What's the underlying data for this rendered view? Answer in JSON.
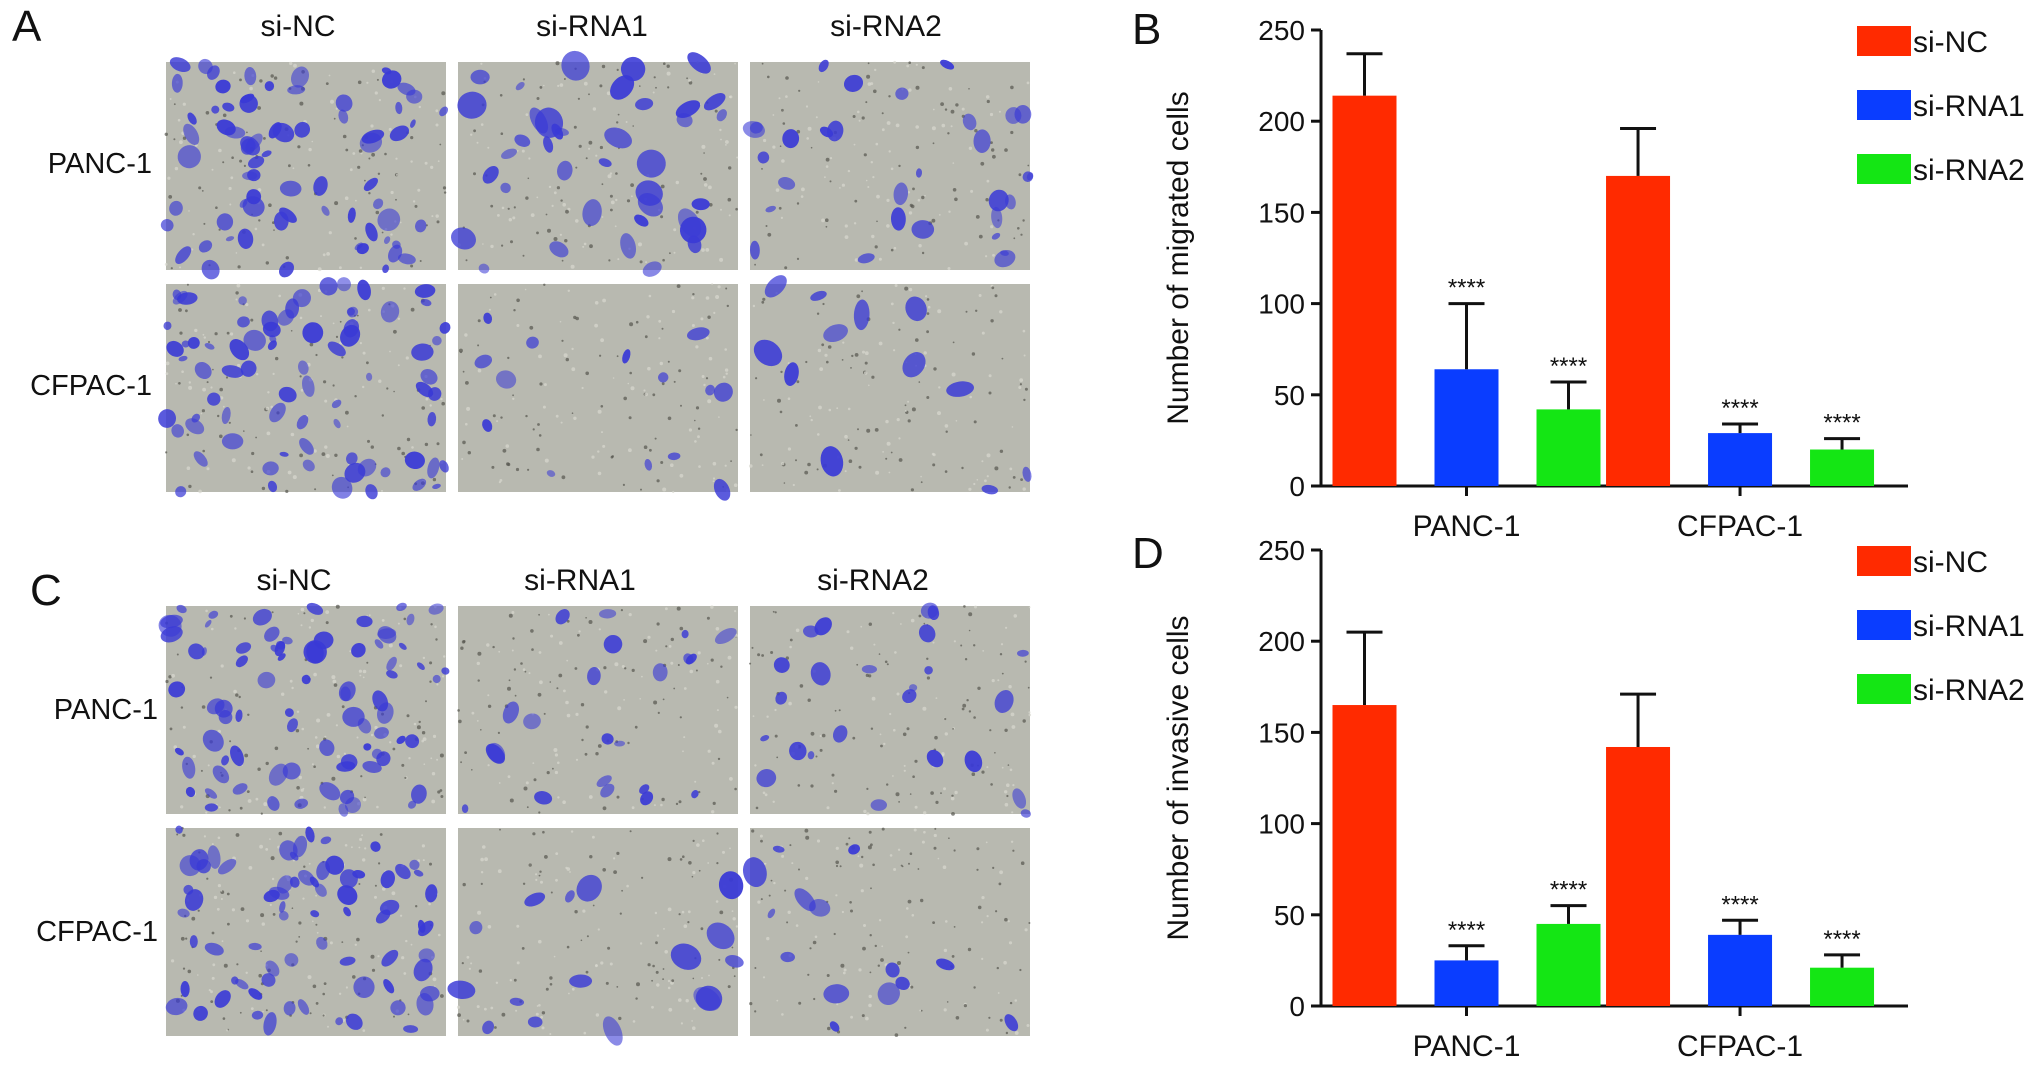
{
  "panels": {
    "A": {
      "letter": "A",
      "columns": [
        "si-NC",
        "si-RNA1",
        "si-RNA2"
      ],
      "rows": [
        "PANC-1",
        "CFPAC-1"
      ]
    },
    "C": {
      "letter": "C",
      "columns": [
        "si-NC",
        "si-RNA1",
        "si-RNA2"
      ],
      "rows": [
        "PANC-1",
        "CFPAC-1"
      ]
    }
  },
  "colors": {
    "si-NC": "#ff2a00",
    "si-RNA1": "#0a3dff",
    "si-RNA2": "#14e614",
    "stain": "#3a3ad6",
    "background_field": "#b8b9b0"
  },
  "chart_data": [
    {
      "panel": "B",
      "type": "bar",
      "categories": [
        "PANC-1",
        "CFPAC-1"
      ],
      "series": [
        {
          "name": "si-NC",
          "values": [
            214,
            170
          ],
          "errors": [
            23,
            26
          ],
          "sig": [
            "",
            ""
          ]
        },
        {
          "name": "si-RNA1",
          "values": [
            64,
            29
          ],
          "errors": [
            36,
            5
          ],
          "sig": [
            "****",
            "****"
          ]
        },
        {
          "name": "si-RNA2",
          "values": [
            42,
            20
          ],
          "errors": [
            15,
            6
          ],
          "sig": [
            "****",
            "****"
          ]
        }
      ],
      "ylabel": "Number of migrated cells",
      "ylim": [
        0,
        250
      ],
      "yticks": [
        0,
        50,
        100,
        150,
        200,
        250
      ],
      "legend_position": "top-right"
    },
    {
      "panel": "D",
      "type": "bar",
      "categories": [
        "PANC-1",
        "CFPAC-1"
      ],
      "series": [
        {
          "name": "si-NC",
          "values": [
            165,
            142
          ],
          "errors": [
            40,
            29
          ],
          "sig": [
            "",
            ""
          ]
        },
        {
          "name": "si-RNA1",
          "values": [
            25,
            39
          ],
          "errors": [
            8,
            8
          ],
          "sig": [
            "****",
            "****"
          ]
        },
        {
          "name": "si-RNA2",
          "values": [
            45,
            21
          ],
          "errors": [
            10,
            7
          ],
          "sig": [
            "****",
            "****"
          ]
        }
      ],
      "ylabel": "Number of invasive cells",
      "ylim": [
        0,
        250
      ],
      "yticks": [
        0,
        50,
        100,
        150,
        200,
        250
      ],
      "legend_position": "top-right"
    }
  ]
}
